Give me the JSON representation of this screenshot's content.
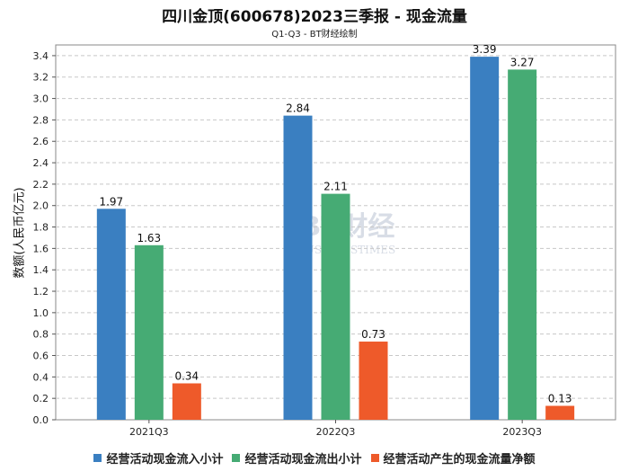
{
  "chart_data": {
    "type": "bar",
    "title": "四川金顶(600678)2023三季报 - 现金流量",
    "subtitle": "Q1-Q3 - BT财经绘制",
    "ylabel": "数额(人民币亿元)",
    "xlabel": "",
    "categories": [
      "2021Q3",
      "2022Q3",
      "2023Q3"
    ],
    "ylim": [
      0,
      3.5
    ],
    "yticks": [
      0.0,
      0.2,
      0.4,
      0.6,
      0.8,
      1.0,
      1.2,
      1.4,
      1.6,
      1.8,
      2.0,
      2.2,
      2.4,
      2.6,
      2.8,
      3.0,
      3.2,
      3.4
    ],
    "grid": true,
    "legend_position": "bottom",
    "series": [
      {
        "name": "经营活动现金流入小计",
        "color": "#3a7fc1",
        "values": [
          1.97,
          2.84,
          3.39
        ]
      },
      {
        "name": "经营活动现金流出小计",
        "color": "#46ab74",
        "values": [
          1.63,
          2.11,
          3.27
        ]
      },
      {
        "name": "经营活动产生的现金流量净额",
        "color": "#ee5a2a",
        "values": [
          0.34,
          0.73,
          0.13
        ]
      }
    ],
    "watermark": {
      "main": "BT财经",
      "sub": "BUSINESSTIMES"
    }
  }
}
